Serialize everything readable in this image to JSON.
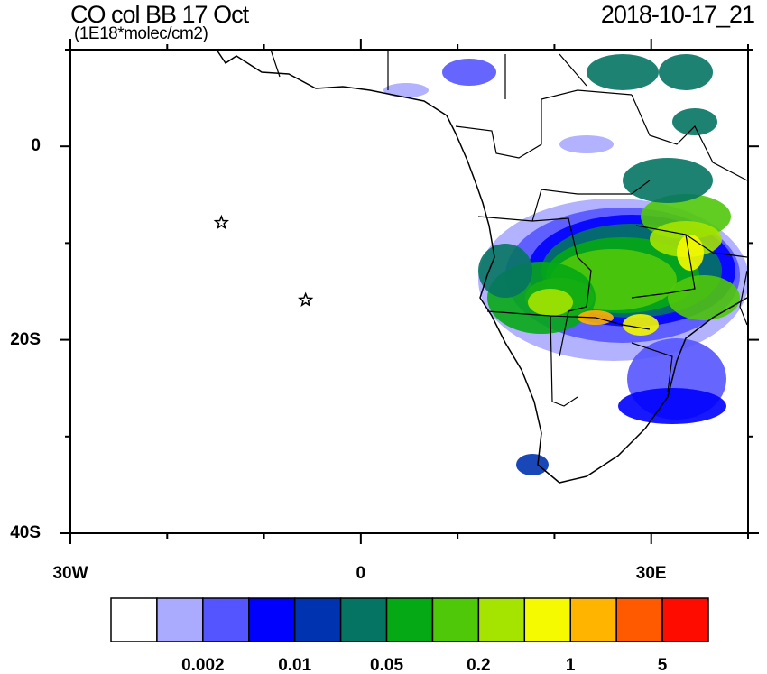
{
  "title": "CO col BB 17 Oct",
  "units": "(1E18*molec/cm2)",
  "valid_time": "2018-10-17_21",
  "map": {
    "lon_range": [
      -30,
      40
    ],
    "lat_range": [
      -40,
      10
    ],
    "lat_labels": [
      {
        "value": 0,
        "label": "0"
      },
      {
        "value": -20,
        "label": "20S"
      },
      {
        "value": -40,
        "label": "40S"
      }
    ],
    "lon_labels": [
      {
        "value": -30,
        "label": "30W"
      },
      {
        "value": 0,
        "label": "0"
      },
      {
        "value": 30,
        "label": "30E"
      }
    ],
    "markers": [
      {
        "icon": "star-icon",
        "lon": -14.4,
        "lat": -7.9
      },
      {
        "icon": "star-icon",
        "lon": -5.7,
        "lat": -15.9
      }
    ]
  },
  "colorbar": {
    "colors": [
      "#ffffff",
      "#aaaaff",
      "#5555ff",
      "#0000ff",
      "#0033b0",
      "#067463",
      "#05a815",
      "#50c80a",
      "#a5e400",
      "#f5fa00",
      "#ffb400",
      "#ff5a00",
      "#ff0c00"
    ],
    "labels": [
      {
        "after_box": 2,
        "text": "0.002"
      },
      {
        "after_box": 4,
        "text": "0.01"
      },
      {
        "after_box": 6,
        "text": "0.05"
      },
      {
        "after_box": 8,
        "text": "0.2"
      },
      {
        "after_box": 10,
        "text": "1"
      },
      {
        "after_box": 12,
        "text": "5"
      }
    ]
  }
}
